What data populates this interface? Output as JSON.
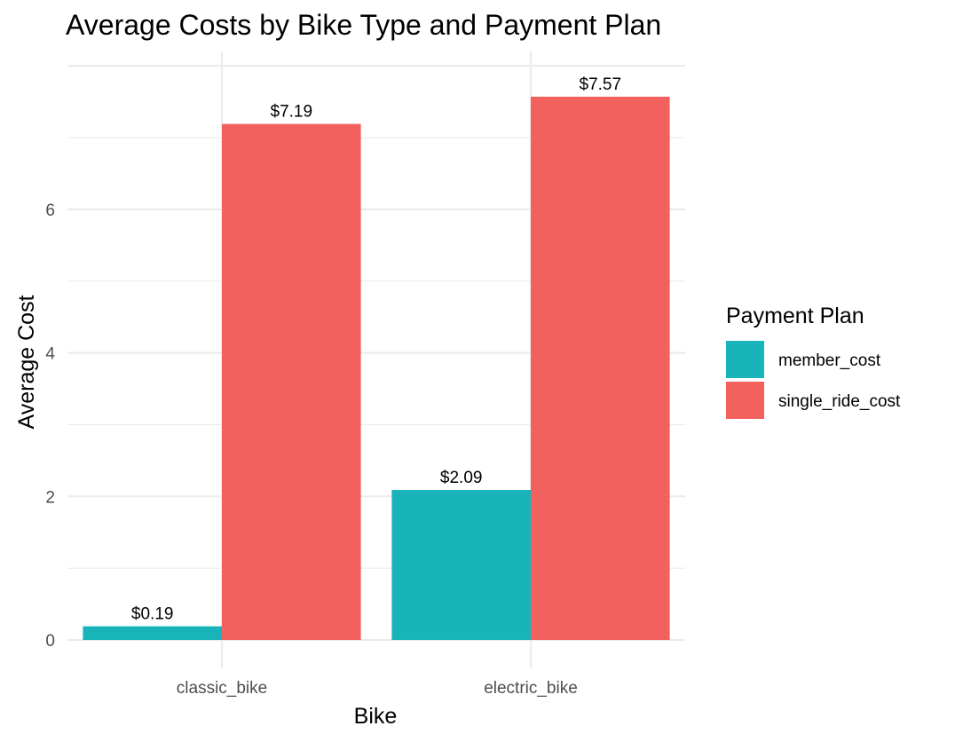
{
  "chart_data": {
    "type": "bar",
    "title": "Average Costs by Bike Type and Payment Plan",
    "xlabel": "Bike",
    "ylabel": "Average Cost",
    "categories": [
      "classic_bike",
      "electric_bike"
    ],
    "series": [
      {
        "name": "member_cost",
        "color": "#19B4B9",
        "values": [
          0.19,
          2.09
        ],
        "labels": [
          "$0.19",
          "$2.09"
        ]
      },
      {
        "name": "single_ride_cost",
        "color": "#F3615E",
        "values": [
          7.19,
          7.57
        ],
        "labels": [
          "$7.19",
          "$7.57"
        ]
      }
    ],
    "ylim": [
      0,
      8.2
    ],
    "yticks": [
      0,
      2,
      4,
      6
    ],
    "ytick_labels": [
      "0",
      "2",
      "4",
      "6"
    ],
    "grid": true,
    "legend": {
      "title": "Payment Plan",
      "position": "right"
    }
  }
}
